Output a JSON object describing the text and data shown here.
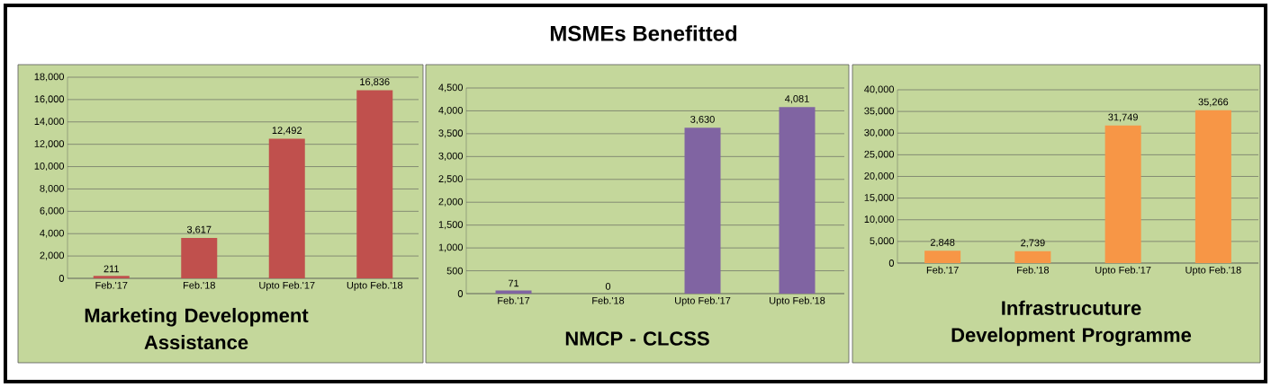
{
  "chart_data": [
    {
      "type": "other",
      "title": "MSMEs Benefitted"
    },
    {
      "type": "bar",
      "title": "Marketing Development Assistance",
      "categories": [
        "Feb.'17",
        "Feb.'18",
        "Upto Feb.'17",
        "Upto Feb.'18"
      ],
      "values": [
        211,
        3617,
        12492,
        16836
      ],
      "value_labels": [
        "211",
        "3,617",
        "12,492",
        "16,836"
      ],
      "color": "#c0504d",
      "ylim": [
        0,
        18000
      ],
      "yticks": [
        0,
        {
          "value": 2000,
          "label": "2,000"
        },
        {
          "value": 4000,
          "label": "4,000"
        },
        {
          "value": 6000,
          "label": "6,000"
        },
        {
          "value": 8000,
          "label": "8,000"
        },
        {
          "value": 10000,
          "label": "10,000"
        },
        {
          "value": 12000,
          "label": "12,000"
        },
        {
          "value": 14000,
          "label": "14,000"
        },
        {
          "value": 16000,
          "label": "16,000"
        },
        {
          "value": 18000,
          "label": "18,000"
        }
      ],
      "grid": "y"
    },
    {
      "type": "bar",
      "title": "NMCP - CLCSS",
      "categories": [
        "Feb.'17",
        "Feb.'18",
        "Upto Feb.'17",
        "Upto Feb.'18"
      ],
      "values": [
        71,
        0,
        3630,
        4081
      ],
      "value_labels": [
        "71",
        "0",
        "3,630",
        "4,081"
      ],
      "color": "#8064a2",
      "ylim": [
        0,
        4500
      ],
      "yticks": [
        0,
        500,
        {
          "value": 1000,
          "label": "1,000"
        },
        {
          "value": 1500,
          "label": "1,500"
        },
        {
          "value": 2000,
          "label": "2,000"
        },
        {
          "value": 2500,
          "label": "2,500"
        },
        {
          "value": 3000,
          "label": "3,000"
        },
        {
          "value": 3500,
          "label": "3,500"
        },
        {
          "value": 4000,
          "label": "4,000"
        },
        {
          "value": 4500,
          "label": "4,500"
        }
      ],
      "grid": "y"
    },
    {
      "type": "bar",
      "title": "Infrastrucuture Development Programme",
      "categories": [
        "Feb.'17",
        "Feb.'18",
        "Upto Feb.'17",
        "Upto Feb.'18"
      ],
      "values": [
        2848,
        2739,
        31749,
        35266
      ],
      "value_labels": [
        "2,848",
        "2,739",
        "31,749",
        "35,266"
      ],
      "color": "#f79646",
      "ylim": [
        0,
        40000
      ],
      "yticks": [
        0,
        {
          "value": 5000,
          "label": "5,000"
        },
        {
          "value": 10000,
          "label": "10,000"
        },
        {
          "value": 15000,
          "label": "15,000"
        },
        {
          "value": 20000,
          "label": "20,000"
        },
        {
          "value": 25000,
          "label": "25,000"
        },
        {
          "value": 30000,
          "label": "30,000"
        },
        {
          "value": 35000,
          "label": "35,000"
        },
        {
          "value": 40000,
          "label": "40,000"
        }
      ],
      "grid": "y"
    }
  ]
}
